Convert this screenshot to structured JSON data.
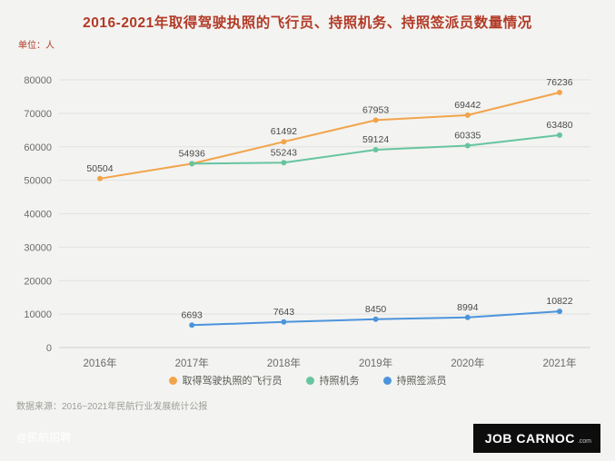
{
  "header": {
    "title": "2016-2021年取得驾驶执照的飞行员、持照机务、持照签派员数量情况",
    "unit": "单位：人"
  },
  "chart_data": {
    "type": "line",
    "title": "2016-2021年取得驾驶执照的飞行员、持照机务、持照签派员数量情况",
    "unit": "人",
    "categories": [
      "2016年",
      "2017年",
      "2018年",
      "2019年",
      "2020年",
      "2021年"
    ],
    "series": [
      {
        "name": "取得驾驶执照的飞行员",
        "color": "#f2a44a",
        "values": [
          50504,
          54936,
          61492,
          67953,
          69442,
          76236
        ],
        "labels": [
          "50504",
          "54936",
          "61492",
          "67953",
          "69442",
          "76236"
        ]
      },
      {
        "name": "持照机务",
        "color": "#66c5a0",
        "values": [
          null,
          54936,
          55243,
          59124,
          60335,
          63480
        ],
        "labels": [
          null,
          "",
          "55243",
          "59124",
          "60335",
          "63480"
        ]
      },
      {
        "name": "持照签派员",
        "color": "#4b94dc",
        "values": [
          null,
          6693,
          7643,
          8450,
          8994,
          10822
        ],
        "labels": [
          null,
          "6693",
          "7643",
          "8450",
          "8994",
          "10822"
        ]
      }
    ],
    "ylim": [
      0,
      80000
    ],
    "yticks": [
      0,
      10000,
      20000,
      30000,
      40000,
      50000,
      60000,
      70000,
      80000
    ],
    "grid": true,
    "legend_position": "bottom"
  },
  "footer": {
    "source": "数据来源：2016~2021年民航行业发展统计公报",
    "watermark": "@民航招聘",
    "logo": {
      "main": "JOB CARNOC",
      "suffix": ".com"
    }
  },
  "colors": {
    "title": "#b23a26",
    "background": "#f3f3f1",
    "axis_text": "#6b6b6b",
    "value_label": "#4a4a4a",
    "grid": "#e2e2df",
    "axis_line": "#cfcfca"
  }
}
